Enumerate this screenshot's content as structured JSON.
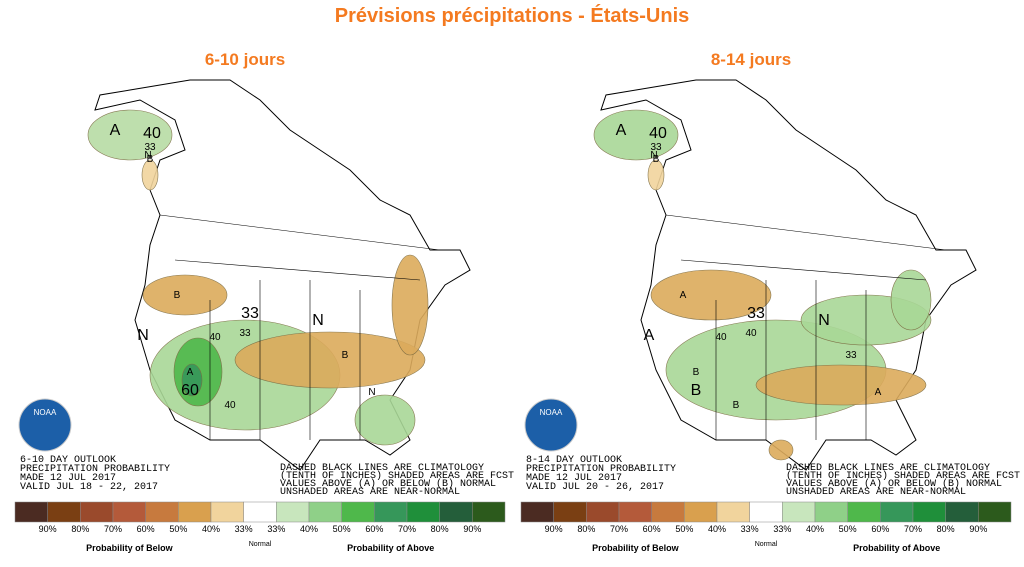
{
  "title": "Prévisions précipitations - États-Unis",
  "panels": [
    {
      "heading": "6-10 jours",
      "outlook": [
        "6-10 DAY OUTLOOK",
        "PRECIPITATION PROBABILITY",
        "MADE  12 JUL 2017",
        "VALID  JUL 18 - 22, 2017"
      ],
      "map_labels": [
        "A",
        "N",
        "B",
        "40",
        "33",
        "B",
        "N",
        "33",
        "A",
        "60",
        "40",
        "B",
        "N",
        "N",
        "40",
        "33"
      ]
    },
    {
      "heading": "8-14 jours",
      "outlook": [
        "8-14 DAY OUTLOOK",
        "PRECIPITATION PROBABILITY",
        "MADE  12 JUL 2017",
        "VALID  JUL 20 - 26, 2017"
      ],
      "map_labels": [
        "A",
        "N",
        "B",
        "40",
        "33",
        "A",
        "A",
        "40",
        "B",
        "B",
        "B",
        "33",
        "N",
        "A",
        "40",
        "33"
      ]
    }
  ],
  "logo": "NOAA",
  "notes": [
    "DASHED BLACK LINES ARE CLIMATOLOGY",
    "(TENTH OF INCHES) SHADED AREAS ARE FCST",
    "VALUES ABOVE (A) OR BELOW (B) NORMAL",
    "UNSHADED AREAS ARE NEAR-NORMAL"
  ],
  "legend": {
    "colors": [
      "#4b2b22",
      "#7a3f13",
      "#9a4a2c",
      "#b45a3a",
      "#c77a3e",
      "#d9a04e",
      "#f1d49d",
      "#ffffff",
      "#c8e6bd",
      "#8fd088",
      "#4fb84b",
      "#36975a",
      "#1f8f3a",
      "#245e3a",
      "#2c5a1c"
    ],
    "below": [
      "90%",
      "80%",
      "70%",
      "60%",
      "50%",
      "40%",
      "33%"
    ],
    "normal": "Normal",
    "above": [
      "33%",
      "40%",
      "50%",
      "60%",
      "70%",
      "80%",
      "90%"
    ],
    "below_caption": "Probability of Below",
    "above_caption": "Probability of Above"
  }
}
